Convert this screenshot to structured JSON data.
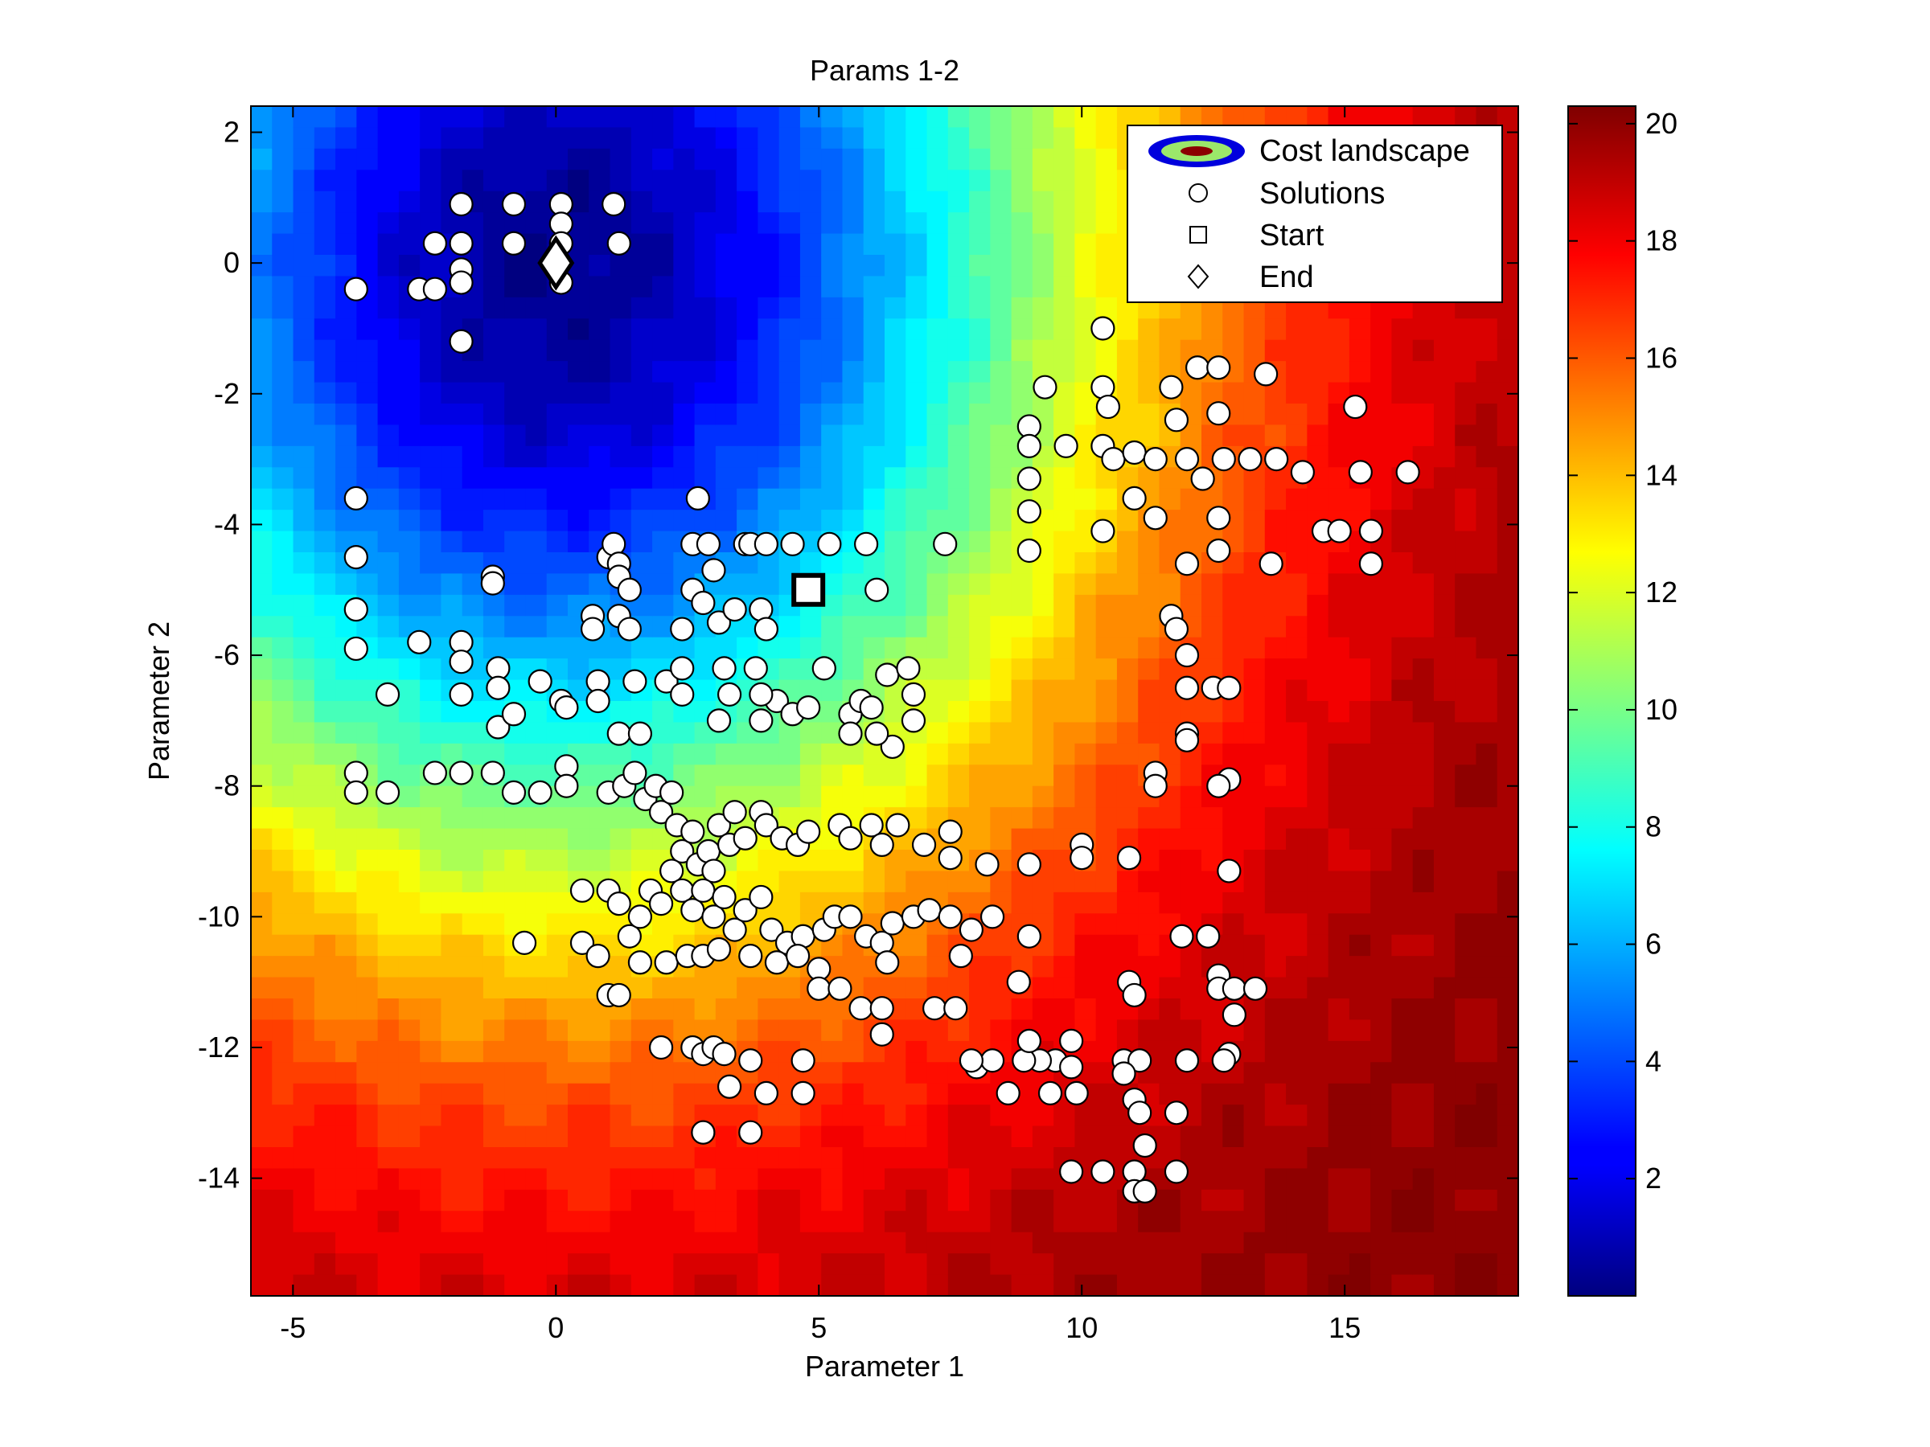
{
  "chart_data": {
    "type": "scatter",
    "title": "Params 1-2",
    "xlabel": "Parameter 1",
    "ylabel": "Parameter 2",
    "xlim": [
      -5.8,
      18.3
    ],
    "ylim": [
      -15.8,
      2.4
    ],
    "xticks": [
      -5,
      0,
      5,
      10,
      15
    ],
    "yticks": [
      2,
      0,
      -2,
      -4,
      -6,
      -8,
      -10,
      -12,
      -14
    ],
    "grid": false,
    "background": {
      "type": "filled-contour",
      "name": "Cost landscape",
      "min_location": [
        0,
        0
      ],
      "min_value": 0.3,
      "max_value": 20.3
    },
    "colorbar": {
      "range": [
        0,
        20.3
      ],
      "ticks": [
        2,
        4,
        6,
        8,
        10,
        12,
        14,
        16,
        18,
        20
      ],
      "colormap": "jet"
    },
    "legend": {
      "position": "top-right",
      "entries": [
        {
          "label": "Cost landscape",
          "marker": "contour"
        },
        {
          "label": "Solutions",
          "marker": "circle"
        },
        {
          "label": "Start",
          "marker": "square"
        },
        {
          "label": "End",
          "marker": "diamond"
        }
      ]
    },
    "start": {
      "x": 4.8,
      "y": -5.0
    },
    "end": {
      "x": 0.0,
      "y": 0.0
    },
    "solutions": [
      [
        -3.8,
        -0.4
      ],
      [
        -2.6,
        -0.4
      ],
      [
        -2.3,
        -0.4
      ],
      [
        -2.3,
        0.3
      ],
      [
        -1.8,
        0.3
      ],
      [
        -1.8,
        -0.1
      ],
      [
        -1.8,
        -0.3
      ],
      [
        -1.8,
        0.9
      ],
      [
        -1.8,
        -1.2
      ],
      [
        -0.8,
        0.9
      ],
      [
        -0.8,
        0.3
      ],
      [
        0.1,
        0.9
      ],
      [
        0.1,
        0.6
      ],
      [
        0.1,
        0.3
      ],
      [
        0.1,
        -0.3
      ],
      [
        1.1,
        0.9
      ],
      [
        1.2,
        0.3
      ],
      [
        10.4,
        -1.0
      ],
      [
        9.3,
        -1.9
      ],
      [
        10.4,
        -1.9
      ],
      [
        11.7,
        -1.9
      ],
      [
        12.2,
        -1.6
      ],
      [
        12.6,
        -1.6
      ],
      [
        13.5,
        -1.7
      ],
      [
        15.2,
        -2.2
      ],
      [
        9.0,
        -2.5
      ],
      [
        9.0,
        -2.8
      ],
      [
        9.7,
        -2.8
      ],
      [
        10.4,
        -2.8
      ],
      [
        10.6,
        -3.0
      ],
      [
        11.0,
        -2.9
      ],
      [
        11.4,
        -3.0
      ],
      [
        12.0,
        -3.0
      ],
      [
        12.3,
        -3.3
      ],
      [
        12.7,
        -3.0
      ],
      [
        13.2,
        -3.0
      ],
      [
        13.7,
        -3.0
      ],
      [
        14.2,
        -3.2
      ],
      [
        15.3,
        -3.2
      ],
      [
        16.2,
        -3.2
      ],
      [
        11.8,
        -2.4
      ],
      [
        12.6,
        -2.3
      ],
      [
        10.5,
        -2.2
      ],
      [
        9.0,
        -3.3
      ],
      [
        9.0,
        -3.8
      ],
      [
        9.0,
        -4.4
      ],
      [
        10.4,
        -4.1
      ],
      [
        11.0,
        -3.6
      ],
      [
        11.4,
        -3.9
      ],
      [
        12.0,
        -4.6
      ],
      [
        12.6,
        -3.9
      ],
      [
        12.6,
        -4.4
      ],
      [
        13.6,
        -4.6
      ],
      [
        14.6,
        -4.1
      ],
      [
        14.9,
        -4.1
      ],
      [
        15.5,
        -4.1
      ],
      [
        15.5,
        -4.6
      ],
      [
        -3.8,
        -3.6
      ],
      [
        -3.8,
        -4.5
      ],
      [
        -3.8,
        -5.3
      ],
      [
        -3.8,
        -5.9
      ],
      [
        -3.2,
        -6.6
      ],
      [
        -2.6,
        -5.8
      ],
      [
        -1.8,
        -5.8
      ],
      [
        -1.8,
        -6.1
      ],
      [
        -1.8,
        -6.6
      ],
      [
        -1.2,
        -4.8
      ],
      [
        -1.2,
        -4.9
      ],
      [
        -1.1,
        -6.2
      ],
      [
        -1.1,
        -6.5
      ],
      [
        -1.1,
        -7.1
      ],
      [
        -1.2,
        -7.8
      ],
      [
        -0.8,
        -6.9
      ],
      [
        -0.3,
        -6.4
      ],
      [
        0.1,
        -6.7
      ],
      [
        0.2,
        -6.8
      ],
      [
        0.2,
        -7.7
      ],
      [
        0.2,
        -8.0
      ],
      [
        -0.3,
        -8.1
      ],
      [
        -0.8,
        -8.1
      ],
      [
        -3.8,
        -7.8
      ],
      [
        -3.8,
        -8.1
      ],
      [
        -3.2,
        -8.1
      ],
      [
        -2.3,
        -7.8
      ],
      [
        -1.8,
        -7.8
      ],
      [
        0.7,
        -5.4
      ],
      [
        0.7,
        -5.6
      ],
      [
        0.8,
        -6.4
      ],
      [
        0.8,
        -6.7
      ],
      [
        1.0,
        -4.5
      ],
      [
        1.1,
        -4.3
      ],
      [
        1.2,
        -4.6
      ],
      [
        1.2,
        -4.8
      ],
      [
        1.4,
        -5.0
      ],
      [
        1.2,
        -5.4
      ],
      [
        1.4,
        -5.6
      ],
      [
        1.5,
        -6.4
      ],
      [
        1.2,
        -7.2
      ],
      [
        1.6,
        -7.2
      ],
      [
        2.1,
        -6.4
      ],
      [
        2.4,
        -6.2
      ],
      [
        2.4,
        -6.6
      ],
      [
        2.4,
        -5.6
      ],
      [
        2.6,
        -5.0
      ],
      [
        2.8,
        -5.2
      ],
      [
        2.6,
        -4.3
      ],
      [
        2.7,
        -3.6
      ],
      [
        2.9,
        -4.3
      ],
      [
        3.0,
        -4.7
      ],
      [
        3.1,
        -5.5
      ],
      [
        3.2,
        -6.2
      ],
      [
        3.3,
        -6.6
      ],
      [
        3.1,
        -7.0
      ],
      [
        3.4,
        -5.3
      ],
      [
        3.9,
        -5.3
      ],
      [
        3.6,
        -4.3
      ],
      [
        3.7,
        -4.3
      ],
      [
        4.0,
        -4.3
      ],
      [
        4.5,
        -4.3
      ],
      [
        5.2,
        -4.3
      ],
      [
        5.9,
        -4.3
      ],
      [
        6.1,
        -5.0
      ],
      [
        7.4,
        -4.3
      ],
      [
        4.0,
        -5.6
      ],
      [
        4.2,
        -6.7
      ],
      [
        4.5,
        -6.9
      ],
      [
        4.8,
        -6.8
      ],
      [
        5.1,
        -6.2
      ],
      [
        5.6,
        -6.9
      ],
      [
        5.6,
        -7.2
      ],
      [
        5.8,
        -6.7
      ],
      [
        6.0,
        -6.8
      ],
      [
        6.3,
        -6.3
      ],
      [
        6.7,
        -6.2
      ],
      [
        6.8,
        -6.6
      ],
      [
        6.8,
        -7.0
      ],
      [
        6.4,
        -7.4
      ],
      [
        6.1,
        -7.2
      ],
      [
        3.8,
        -6.2
      ],
      [
        3.9,
        -6.6
      ],
      [
        3.9,
        -7.0
      ],
      [
        1.0,
        -8.1
      ],
      [
        1.3,
        -8.0
      ],
      [
        1.5,
        -7.8
      ],
      [
        1.7,
        -8.2
      ],
      [
        1.9,
        -8.0
      ],
      [
        2.0,
        -8.4
      ],
      [
        2.2,
        -8.1
      ],
      [
        2.3,
        -8.6
      ],
      [
        2.4,
        -9.0
      ],
      [
        2.6,
        -8.7
      ],
      [
        2.7,
        -9.2
      ],
      [
        2.9,
        -9.0
      ],
      [
        3.0,
        -9.3
      ],
      [
        3.1,
        -8.6
      ],
      [
        3.3,
        -8.9
      ],
      [
        3.4,
        -8.4
      ],
      [
        3.6,
        -8.8
      ],
      [
        3.9,
        -8.4
      ],
      [
        4.0,
        -8.6
      ],
      [
        4.3,
        -8.8
      ],
      [
        4.6,
        -8.9
      ],
      [
        4.8,
        -8.7
      ],
      [
        5.4,
        -8.6
      ],
      [
        5.6,
        -8.8
      ],
      [
        6.0,
        -8.6
      ],
      [
        6.2,
        -8.9
      ],
      [
        6.5,
        -8.6
      ],
      [
        7.0,
        -8.9
      ],
      [
        7.5,
        -8.7
      ],
      [
        7.5,
        -9.1
      ],
      [
        8.2,
        -9.2
      ],
      [
        9.0,
        -9.2
      ],
      [
        1.0,
        -9.6
      ],
      [
        1.2,
        -9.8
      ],
      [
        1.4,
        -10.3
      ],
      [
        1.6,
        -10.0
      ],
      [
        1.8,
        -9.6
      ],
      [
        2.0,
        -9.8
      ],
      [
        2.2,
        -9.3
      ],
      [
        2.4,
        -9.6
      ],
      [
        2.6,
        -9.9
      ],
      [
        2.8,
        -9.6
      ],
      [
        3.0,
        -10.0
      ],
      [
        3.2,
        -9.7
      ],
      [
        3.4,
        -10.2
      ],
      [
        3.6,
        -9.9
      ],
      [
        3.9,
        -9.7
      ],
      [
        4.1,
        -10.2
      ],
      [
        4.4,
        -10.4
      ],
      [
        4.7,
        -10.3
      ],
      [
        5.1,
        -10.2
      ],
      [
        5.3,
        -10.0
      ],
      [
        5.6,
        -10.0
      ],
      [
        5.9,
        -10.3
      ],
      [
        6.2,
        -10.4
      ],
      [
        6.4,
        -10.1
      ],
      [
        6.8,
        -10.0
      ],
      [
        7.1,
        -9.9
      ],
      [
        7.5,
        -10.0
      ],
      [
        7.9,
        -10.2
      ],
      [
        8.3,
        -10.0
      ],
      [
        0.5,
        -9.6
      ],
      [
        0.5,
        -10.4
      ],
      [
        0.8,
        -10.6
      ],
      [
        1.0,
        -11.2
      ],
      [
        1.2,
        -11.2
      ],
      [
        1.6,
        -10.7
      ],
      [
        2.1,
        -10.7
      ],
      [
        2.5,
        -10.6
      ],
      [
        2.8,
        -10.6
      ],
      [
        3.1,
        -10.5
      ],
      [
        3.7,
        -10.6
      ],
      [
        4.2,
        -10.7
      ],
      [
        4.6,
        -10.6
      ],
      [
        5.0,
        -10.8
      ],
      [
        5.0,
        -11.1
      ],
      [
        5.4,
        -11.1
      ],
      [
        5.8,
        -11.4
      ],
      [
        6.2,
        -11.4
      ],
      [
        6.3,
        -10.7
      ],
      [
        7.2,
        -11.4
      ],
      [
        7.6,
        -11.4
      ],
      [
        7.7,
        -10.6
      ],
      [
        8.8,
        -11.0
      ],
      [
        9.0,
        -10.3
      ],
      [
        -0.6,
        -10.4
      ],
      [
        10.0,
        -8.9
      ],
      [
        10.0,
        -9.1
      ],
      [
        10.9,
        -9.1
      ],
      [
        11.4,
        -7.8
      ],
      [
        11.4,
        -8.0
      ],
      [
        12.0,
        -7.2
      ],
      [
        12.0,
        -7.3
      ],
      [
        12.0,
        -6.5
      ],
      [
        12.0,
        -6.0
      ],
      [
        11.7,
        -5.4
      ],
      [
        11.8,
        -5.6
      ],
      [
        12.5,
        -6.5
      ],
      [
        12.8,
        -6.5
      ],
      [
        12.8,
        -7.9
      ],
      [
        12.6,
        -8.0
      ],
      [
        12.8,
        -9.3
      ],
      [
        12.4,
        -10.3
      ],
      [
        11.9,
        -10.3
      ],
      [
        12.6,
        -10.9
      ],
      [
        12.6,
        -11.1
      ],
      [
        12.9,
        -11.1
      ],
      [
        13.3,
        -11.1
      ],
      [
        12.9,
        -11.5
      ],
      [
        12.8,
        -12.1
      ],
      [
        12.7,
        -12.2
      ],
      [
        12.0,
        -12.2
      ],
      [
        10.9,
        -11.0
      ],
      [
        11.0,
        -11.2
      ],
      [
        10.8,
        -12.2
      ],
      [
        11.1,
        -12.2
      ],
      [
        10.8,
        -12.4
      ],
      [
        11.0,
        -12.8
      ],
      [
        11.1,
        -13.0
      ],
      [
        11.8,
        -13.0
      ],
      [
        11.2,
        -13.5
      ],
      [
        9.8,
        -11.9
      ],
      [
        9.5,
        -12.2
      ],
      [
        9.2,
        -12.2
      ],
      [
        9.8,
        -12.3
      ],
      [
        9.4,
        -12.7
      ],
      [
        9.9,
        -12.7
      ],
      [
        8.9,
        -12.2
      ],
      [
        8.0,
        -12.3
      ],
      [
        8.6,
        -12.7
      ],
      [
        9.0,
        -11.9
      ],
      [
        8.3,
        -12.2
      ],
      [
        7.9,
        -12.2
      ],
      [
        9.8,
        -13.9
      ],
      [
        10.4,
        -13.9
      ],
      [
        11.0,
        -13.9
      ],
      [
        11.8,
        -13.9
      ],
      [
        11.0,
        -14.2
      ],
      [
        11.2,
        -14.2
      ],
      [
        2.0,
        -12.0
      ],
      [
        2.6,
        -12.0
      ],
      [
        2.8,
        -12.1
      ],
      [
        3.0,
        -12.0
      ],
      [
        3.2,
        -12.1
      ],
      [
        3.3,
        -12.6
      ],
      [
        3.7,
        -12.2
      ],
      [
        4.0,
        -12.7
      ],
      [
        4.7,
        -12.2
      ],
      [
        4.7,
        -12.7
      ],
      [
        6.2,
        -11.8
      ],
      [
        2.8,
        -13.3
      ],
      [
        2.8,
        -13.3
      ],
      [
        3.7,
        -13.3
      ]
    ]
  }
}
